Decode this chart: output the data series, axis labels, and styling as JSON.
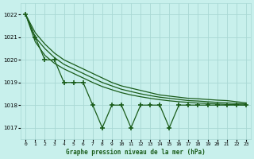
{
  "title": "Graphe pression niveau de la mer (hPa)",
  "bg_color": "#c8f0ec",
  "grid_color": "#a8d8d4",
  "line_color": "#1a5c1a",
  "xlim_min": -0.5,
  "xlim_max": 23.5,
  "ylim_min": 1016.5,
  "ylim_max": 1022.5,
  "yticks": [
    1017,
    1018,
    1019,
    1020,
    1021,
    1022
  ],
  "xtick_labels": [
    "0",
    "1",
    "2",
    "3",
    "4",
    "5",
    "6",
    "7",
    "8",
    "9",
    "10",
    "11",
    "12",
    "13",
    "14",
    "15",
    "16",
    "17",
    "18",
    "19",
    "20",
    "21",
    "22",
    "23"
  ],
  "series_jagged": [
    1022.0,
    1021.0,
    1020.0,
    1020.0,
    1019.0,
    1019.0,
    1019.0,
    1018.0,
    1017.0,
    1018.0,
    1018.0,
    1017.0,
    1018.0,
    1018.0,
    1018.0,
    1017.0,
    1018.0,
    1018.0,
    1018.0,
    1018.0,
    1018.0,
    1018.0,
    1018.0,
    1018.0
  ],
  "series_smooth_top": [
    1022.0,
    1021.2,
    1020.7,
    1020.3,
    1020.0,
    1019.8,
    1019.6,
    1019.4,
    1019.2,
    1019.0,
    1018.85,
    1018.75,
    1018.65,
    1018.55,
    1018.45,
    1018.4,
    1018.35,
    1018.3,
    1018.28,
    1018.25,
    1018.22,
    1018.2,
    1018.15,
    1018.1
  ],
  "series_smooth_mid": [
    1022.0,
    1021.0,
    1020.5,
    1020.1,
    1019.8,
    1019.6,
    1019.4,
    1019.2,
    1019.0,
    1018.85,
    1018.7,
    1018.6,
    1018.5,
    1018.42,
    1018.35,
    1018.3,
    1018.25,
    1018.2,
    1018.18,
    1018.15,
    1018.12,
    1018.1,
    1018.07,
    1018.05
  ],
  "series_smooth_bot": [
    1022.0,
    1020.8,
    1020.2,
    1019.85,
    1019.6,
    1019.4,
    1019.2,
    1019.0,
    1018.82,
    1018.68,
    1018.55,
    1018.45,
    1018.37,
    1018.3,
    1018.24,
    1018.19,
    1018.15,
    1018.12,
    1018.09,
    1018.07,
    1018.05,
    1018.03,
    1018.02,
    1018.0
  ]
}
